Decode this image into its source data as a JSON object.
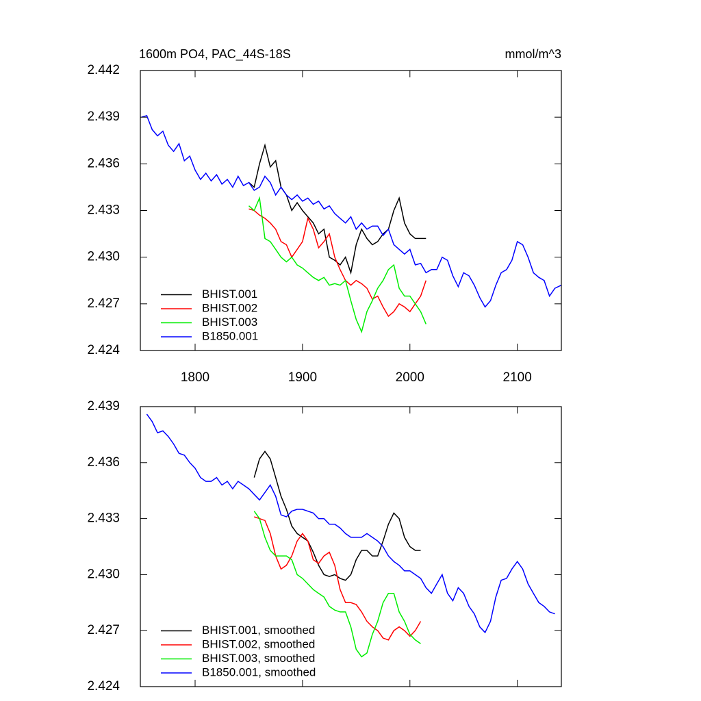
{
  "chart_data": [
    {
      "type": "line",
      "title": "1600m PO4, PAC_44S-18S",
      "units": "mmol/m^3",
      "xlim": [
        1749,
        2141
      ],
      "xticks": [
        1800,
        1900,
        2000,
        2100
      ],
      "ylim": [
        2.424,
        2.442
      ],
      "yticks": [
        {
          "value": 2.424,
          "label": "2.424"
        },
        {
          "value": 2.427,
          "label": "2.427"
        },
        {
          "value": 2.43,
          "label": "2.430"
        },
        {
          "value": 2.433,
          "label": "2.433"
        },
        {
          "value": 2.436,
          "label": "2.436"
        },
        {
          "value": 2.439,
          "label": "2.439"
        },
        {
          "value": 2.442,
          "label": "2.442"
        }
      ],
      "legend": "bottom-left",
      "series": [
        {
          "name": "BHIST.001",
          "color": "#000000",
          "x": [
            1850,
            1855,
            1860,
            1865,
            1870,
            1875,
            1880,
            1885,
            1890,
            1895,
            1900,
            1905,
            1910,
            1915,
            1920,
            1925,
            1930,
            1935,
            1940,
            1945,
            1950,
            1955,
            1960,
            1965,
            1970,
            1975,
            1980,
            1985,
            1990,
            1995,
            2000,
            2005,
            2010,
            2015
          ],
          "values": [
            2.4348,
            2.4345,
            2.436,
            2.4372,
            2.4358,
            2.4362,
            2.4345,
            2.434,
            2.433,
            2.4335,
            2.433,
            2.4326,
            2.4322,
            2.4315,
            2.4318,
            2.43,
            2.4298,
            2.4295,
            2.43,
            2.429,
            2.4308,
            2.4318,
            2.4312,
            2.4308,
            2.431,
            2.4315,
            2.4318,
            2.433,
            2.4338,
            2.4322,
            2.4315,
            2.4312,
            2.4312,
            2.4312
          ]
        },
        {
          "name": "BHIST.002",
          "color": "#ff0000",
          "x": [
            1850,
            1855,
            1860,
            1865,
            1870,
            1875,
            1880,
            1885,
            1890,
            1895,
            1900,
            1905,
            1910,
            1915,
            1920,
            1925,
            1930,
            1935,
            1940,
            1945,
            1950,
            1955,
            1960,
            1965,
            1970,
            1975,
            1980,
            1985,
            1990,
            1995,
            2000,
            2005,
            2010,
            2015
          ],
          "values": [
            2.4331,
            2.433,
            2.4327,
            2.4325,
            2.4322,
            2.4318,
            2.431,
            2.4308,
            2.43,
            2.4305,
            2.431,
            2.4325,
            2.4318,
            2.4306,
            2.431,
            2.4315,
            2.43,
            2.4292,
            2.4285,
            2.4282,
            2.4285,
            2.4283,
            2.428,
            2.4273,
            2.4275,
            2.4268,
            2.4262,
            2.4265,
            2.427,
            2.4268,
            2.4265,
            2.427,
            2.4275,
            2.4285
          ]
        },
        {
          "name": "BHIST.003",
          "color": "#00ee00",
          "x": [
            1850,
            1855,
            1860,
            1865,
            1870,
            1875,
            1880,
            1885,
            1890,
            1895,
            1900,
            1905,
            1910,
            1915,
            1920,
            1925,
            1930,
            1935,
            1940,
            1945,
            1950,
            1955,
            1960,
            1965,
            1970,
            1975,
            1980,
            1985,
            1990,
            1995,
            2000,
            2005,
            2010,
            2015
          ],
          "values": [
            2.4333,
            2.433,
            2.4338,
            2.4312,
            2.431,
            2.4305,
            2.43,
            2.4297,
            2.43,
            2.4295,
            2.4293,
            2.429,
            2.4287,
            2.4285,
            2.4287,
            2.4282,
            2.4283,
            2.4282,
            2.4285,
            2.4272,
            2.426,
            2.4252,
            2.4265,
            2.4272,
            2.428,
            2.4285,
            2.4292,
            2.4295,
            2.428,
            2.4275,
            2.4275,
            2.427,
            2.4265,
            2.4257
          ]
        },
        {
          "name": "B1850.001",
          "color": "#0000ff",
          "x": [
            1750,
            1755,
            1760,
            1765,
            1770,
            1775,
            1780,
            1785,
            1790,
            1795,
            1800,
            1805,
            1810,
            1815,
            1820,
            1825,
            1830,
            1835,
            1840,
            1845,
            1850,
            1855,
            1860,
            1865,
            1870,
            1875,
            1880,
            1885,
            1890,
            1895,
            1900,
            1905,
            1910,
            1915,
            1920,
            1925,
            1930,
            1935,
            1940,
            1945,
            1950,
            1955,
            1960,
            1965,
            1970,
            1975,
            1980,
            1985,
            1990,
            1995,
            2000,
            2005,
            2010,
            2015,
            2020,
            2025,
            2030,
            2035,
            2040,
            2045,
            2050,
            2055,
            2060,
            2065,
            2070,
            2075,
            2080,
            2085,
            2090,
            2095,
            2100,
            2105,
            2110,
            2115,
            2120,
            2125,
            2130,
            2135,
            2141
          ],
          "values": [
            2.439,
            2.4391,
            2.4382,
            2.4378,
            2.4381,
            2.4372,
            2.4368,
            2.4373,
            2.4362,
            2.4365,
            2.4356,
            2.435,
            2.4354,
            2.4349,
            2.4353,
            2.4347,
            2.435,
            2.4345,
            2.4352,
            2.4346,
            2.4348,
            2.4343,
            2.4345,
            2.4352,
            2.4348,
            2.434,
            2.4345,
            2.434,
            2.4337,
            2.434,
            2.4336,
            2.4338,
            2.4334,
            2.4336,
            2.4331,
            2.4333,
            2.4328,
            2.4325,
            2.4322,
            2.4326,
            2.4318,
            2.4322,
            2.4318,
            2.432,
            2.432,
            2.4314,
            2.4318,
            2.4308,
            2.4305,
            2.4302,
            2.4305,
            2.4295,
            2.4296,
            2.429,
            2.4292,
            2.4292,
            2.43,
            2.4298,
            2.4288,
            2.4281,
            2.429,
            2.4288,
            2.4282,
            2.4274,
            2.4268,
            2.4272,
            2.4282,
            2.429,
            2.4292,
            2.4298,
            2.431,
            2.4308,
            2.43,
            2.429,
            2.4287,
            2.4285,
            2.4275,
            2.428,
            2.4282
          ]
        }
      ]
    },
    {
      "type": "line",
      "xlim": [
        1749,
        2141
      ],
      "xticks": [
        1800,
        1900,
        2000,
        2100
      ],
      "xticklabels": false,
      "ylim": [
        2.424,
        2.439
      ],
      "yticks": [
        {
          "value": 2.424,
          "label": "2.424"
        },
        {
          "value": 2.427,
          "label": "2.427"
        },
        {
          "value": 2.43,
          "label": "2.430"
        },
        {
          "value": 2.433,
          "label": "2.433"
        },
        {
          "value": 2.436,
          "label": "2.436"
        },
        {
          "value": 2.439,
          "label": "2.439"
        }
      ],
      "legend": "bottom-left",
      "series": [
        {
          "name": "BHIST.001, smoothed",
          "color": "#000000",
          "x": [
            1855,
            1860,
            1865,
            1870,
            1875,
            1880,
            1885,
            1890,
            1895,
            1900,
            1905,
            1910,
            1915,
            1920,
            1925,
            1930,
            1935,
            1940,
            1945,
            1950,
            1955,
            1960,
            1965,
            1970,
            1975,
            1980,
            1985,
            1990,
            1995,
            2000,
            2005,
            2010
          ],
          "values": [
            2.4352,
            2.4362,
            2.4366,
            2.4362,
            2.4352,
            2.4342,
            2.4335,
            2.4326,
            2.4322,
            2.432,
            2.4318,
            2.4312,
            2.4305,
            2.43,
            2.4299,
            2.43,
            2.4298,
            2.4297,
            2.43,
            2.4308,
            2.4313,
            2.4313,
            2.431,
            2.431,
            2.4318,
            2.4327,
            2.4333,
            2.433,
            2.432,
            2.4315,
            2.4313,
            2.4313
          ]
        },
        {
          "name": "BHIST.002, smoothed",
          "color": "#ff0000",
          "x": [
            1855,
            1860,
            1865,
            1870,
            1875,
            1880,
            1885,
            1890,
            1895,
            1900,
            1905,
            1910,
            1915,
            1920,
            1925,
            1930,
            1935,
            1940,
            1945,
            1950,
            1955,
            1960,
            1965,
            1970,
            1975,
            1980,
            1985,
            1990,
            1995,
            2000,
            2005,
            2010
          ],
          "values": [
            2.4331,
            2.433,
            2.4329,
            2.4322,
            2.431,
            2.4303,
            2.4305,
            2.431,
            2.4318,
            2.4322,
            2.4318,
            2.4308,
            2.4306,
            2.431,
            2.4312,
            2.4305,
            2.4292,
            2.4285,
            2.4285,
            2.4284,
            2.428,
            2.4275,
            2.4272,
            2.427,
            2.4266,
            2.4265,
            2.427,
            2.4272,
            2.427,
            2.4267,
            2.427,
            2.4275
          ]
        },
        {
          "name": "BHIST.003, smoothed",
          "color": "#00ee00",
          "x": [
            1855,
            1860,
            1865,
            1870,
            1875,
            1880,
            1885,
            1890,
            1895,
            1900,
            1905,
            1910,
            1915,
            1920,
            1925,
            1930,
            1935,
            1940,
            1945,
            1950,
            1955,
            1960,
            1965,
            1970,
            1975,
            1980,
            1985,
            1990,
            1995,
            2000,
            2005,
            2010
          ],
          "values": [
            2.4334,
            2.433,
            2.432,
            2.4313,
            2.431,
            2.431,
            2.431,
            2.4308,
            2.43,
            2.4298,
            2.4295,
            2.4292,
            2.429,
            2.4288,
            2.4283,
            2.4281,
            2.428,
            2.428,
            2.4272,
            2.426,
            2.4256,
            2.4258,
            2.4268,
            2.4275,
            2.4285,
            2.429,
            2.429,
            2.428,
            2.4275,
            2.4268,
            2.4265,
            2.4263
          ]
        },
        {
          "name": "B1850.001, smoothed",
          "color": "#0000ff",
          "x": [
            1755,
            1760,
            1765,
            1770,
            1775,
            1780,
            1785,
            1790,
            1795,
            1800,
            1805,
            1810,
            1815,
            1820,
            1825,
            1830,
            1835,
            1840,
            1845,
            1850,
            1855,
            1860,
            1865,
            1870,
            1875,
            1880,
            1885,
            1890,
            1895,
            1900,
            1905,
            1910,
            1915,
            1920,
            1925,
            1930,
            1935,
            1940,
            1945,
            1950,
            1955,
            1960,
            1965,
            1970,
            1975,
            1980,
            1985,
            1990,
            1995,
            2000,
            2005,
            2010,
            2015,
            2020,
            2025,
            2030,
            2035,
            2040,
            2045,
            2050,
            2055,
            2060,
            2065,
            2070,
            2075,
            2080,
            2085,
            2090,
            2095,
            2100,
            2105,
            2110,
            2115,
            2120,
            2125,
            2130,
            2135
          ],
          "values": [
            2.4386,
            2.4382,
            2.4376,
            2.4377,
            2.4374,
            2.437,
            2.4365,
            2.4364,
            2.436,
            2.4357,
            2.4352,
            2.435,
            2.435,
            2.4352,
            2.4348,
            2.435,
            2.4346,
            2.435,
            2.4348,
            2.4346,
            2.4343,
            2.434,
            2.4344,
            2.4348,
            2.4342,
            2.4332,
            2.4331,
            2.4334,
            2.4335,
            2.4335,
            2.4334,
            2.4333,
            2.433,
            2.433,
            2.4327,
            2.4327,
            2.4325,
            2.4322,
            2.432,
            2.432,
            2.432,
            2.4322,
            2.432,
            2.4318,
            2.4315,
            2.431,
            2.4307,
            2.4305,
            2.4302,
            2.4302,
            2.43,
            2.4298,
            2.4293,
            2.429,
            2.4295,
            2.43,
            2.429,
            2.4286,
            2.4293,
            2.429,
            2.4283,
            2.4279,
            2.4272,
            2.4269,
            2.4275,
            2.4288,
            2.4297,
            2.4298,
            2.4303,
            2.4307,
            2.4303,
            2.4295,
            2.429,
            2.4285,
            2.4283,
            2.428,
            2.4279
          ]
        }
      ]
    }
  ]
}
